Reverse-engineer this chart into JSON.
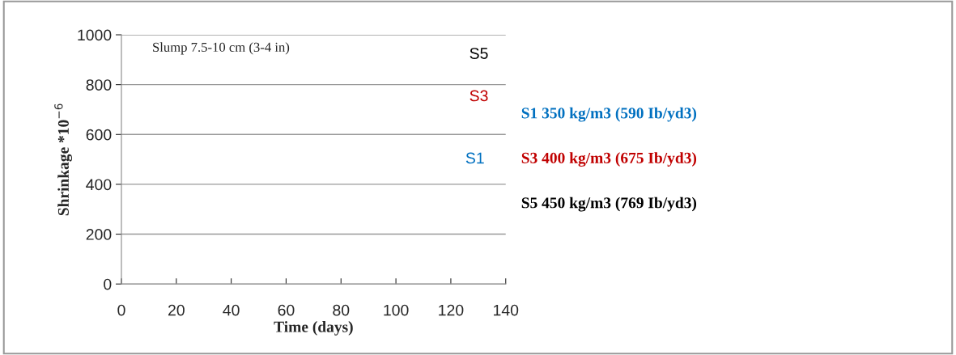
{
  "chart_data": {
    "type": "line",
    "xlabel": "Time (days)",
    "ylabel": "Shrinkage *10$^{−6}$",
    "series": [
      {
        "name": "S1 350 kg/m3 (590 Ib/yd3)",
        "color": "#0070c0",
        "values": [
          null,
          null,
          null,
          null,
          null,
          null,
          null,
          null
        ]
      },
      {
        "name": "S3 400 kg/m3 (675 Ib/yd3)",
        "color": "#c00000",
        "values": [
          null,
          null,
          null,
          null,
          null,
          null,
          null,
          null
        ]
      },
      {
        "name": "S5 450 kg/m3 (769 Ib/yd3)",
        "color": "#000000",
        "values": [
          null,
          null,
          null,
          null,
          null,
          null,
          null,
          null
        ]
      }
    ],
    "annotations": [
      "Slump 7.5-10 cm (3-4 in)",
      "S5",
      "S3",
      "S1"
    ],
    "categories": [
      "0",
      "20",
      "40",
      "60",
      "80",
      "100",
      "120",
      "140"
    ],
    "ylim": [
      0,
      1000
    ],
    "yticks": [
      0,
      200,
      400,
      600,
      800,
      1000
    ],
    "grid": "y"
  }
}
